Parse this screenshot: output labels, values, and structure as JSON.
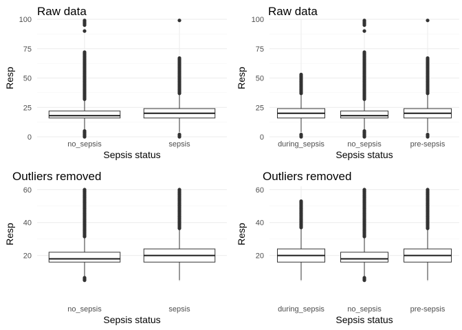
{
  "chart_data": [
    {
      "type": "box",
      "title": "Raw data",
      "xlabel": "Sepsis status",
      "ylabel": "Resp",
      "ylim": [
        0,
        100
      ],
      "yticks": [
        0,
        25,
        50,
        75,
        100
      ],
      "grid": true,
      "categories": [
        "no_sepsis",
        "sepsis"
      ],
      "boxes": [
        {
          "category": "no_sepsis",
          "whisker_low": 6,
          "q1": 16,
          "median": 18,
          "q3": 22,
          "whisker_high": 31,
          "outliers_low": [
            0,
            1,
            2,
            3,
            4,
            5
          ],
          "outliers_high": [
            32,
            34,
            36,
            38,
            40,
            42,
            44,
            46,
            48,
            50,
            52,
            54,
            56,
            58,
            60,
            62,
            64,
            66,
            68,
            72,
            90,
            95,
            99
          ]
        },
        {
          "category": "sepsis",
          "whisker_low": 4,
          "q1": 16,
          "median": 20,
          "q3": 24,
          "whisker_high": 36,
          "outliers_low": [
            0,
            1,
            2
          ],
          "outliers_high": [
            37,
            39,
            41,
            43,
            45,
            47,
            49,
            51,
            53,
            55,
            57,
            59,
            61,
            63,
            65,
            67,
            99
          ]
        }
      ]
    },
    {
      "type": "box",
      "title": "Raw data",
      "xlabel": "Sepsis status",
      "ylabel": "Resp",
      "ylim": [
        0,
        100
      ],
      "yticks": [
        0,
        25,
        50,
        75,
        100
      ],
      "grid": true,
      "categories": [
        "during_sepsis",
        "no_sepsis",
        "pre-sepsis"
      ],
      "boxes": [
        {
          "category": "during_sepsis",
          "whisker_low": 4,
          "q1": 16,
          "median": 20,
          "q3": 24,
          "whisker_high": 36,
          "outliers_low": [
            0,
            1,
            2
          ],
          "outliers_high": [
            37,
            39,
            41,
            43,
            45,
            47,
            49,
            51,
            53
          ]
        },
        {
          "category": "no_sepsis",
          "whisker_low": 6,
          "q1": 16,
          "median": 18,
          "q3": 22,
          "whisker_high": 31,
          "outliers_low": [
            0,
            1,
            2,
            3,
            4,
            5
          ],
          "outliers_high": [
            32,
            34,
            36,
            38,
            40,
            42,
            44,
            46,
            48,
            50,
            52,
            54,
            56,
            58,
            60,
            62,
            64,
            66,
            68,
            72,
            90,
            95,
            99
          ]
        },
        {
          "category": "pre-sepsis",
          "whisker_low": 4,
          "q1": 16,
          "median": 20,
          "q3": 24,
          "whisker_high": 36,
          "outliers_low": [
            0,
            1,
            2
          ],
          "outliers_high": [
            37,
            39,
            41,
            43,
            45,
            47,
            49,
            51,
            53,
            55,
            57,
            59,
            61,
            63,
            65,
            67,
            99
          ]
        }
      ]
    },
    {
      "type": "box",
      "title": "Outliers removed",
      "xlabel": "Sepsis status",
      "ylabel": "Resp",
      "ylim": [
        4,
        62
      ],
      "yticks": [
        20,
        40,
        60
      ],
      "grid": true,
      "categories": [
        "no_sepsis",
        "sepsis"
      ],
      "boxes": [
        {
          "category": "no_sepsis",
          "whisker_low": 7,
          "q1": 16,
          "median": 18,
          "q3": 22,
          "whisker_high": 31,
          "outliers_low": [
            5,
            5.5,
            6,
            6.5
          ],
          "outliers_high": [
            31.5,
            33,
            35,
            37,
            39,
            41,
            43,
            45,
            47,
            49,
            51,
            53,
            55,
            57,
            59,
            60
          ]
        },
        {
          "category": "sepsis",
          "whisker_low": 5,
          "q1": 16,
          "median": 20,
          "q3": 24,
          "whisker_high": 36,
          "outliers_low": [],
          "outliers_high": [
            36.5,
            38,
            40,
            42,
            44,
            46,
            48,
            50,
            52,
            54,
            56,
            58,
            60
          ]
        }
      ]
    },
    {
      "type": "box",
      "title": "Outliers removed",
      "xlabel": "Sepsis status",
      "ylabel": "Resp",
      "ylim": [
        4,
        62
      ],
      "yticks": [
        20,
        40,
        60
      ],
      "grid": true,
      "categories": [
        "during_sepsis",
        "no_sepsis",
        "pre-sepsis"
      ],
      "boxes": [
        {
          "category": "during_sepsis",
          "whisker_low": 5,
          "q1": 16,
          "median": 20,
          "q3": 24,
          "whisker_high": 36,
          "outliers_low": [],
          "outliers_high": [
            37,
            39,
            41,
            43,
            45,
            47,
            49,
            51,
            53
          ]
        },
        {
          "category": "no_sepsis",
          "whisker_low": 7,
          "q1": 16,
          "median": 18,
          "q3": 22,
          "whisker_high": 31,
          "outliers_low": [
            5,
            5.5,
            6,
            6.5
          ],
          "outliers_high": [
            31.5,
            33,
            35,
            37,
            39,
            41,
            43,
            45,
            47,
            49,
            51,
            53,
            55,
            57,
            59,
            60
          ]
        },
        {
          "category": "pre-sepsis",
          "whisker_low": 5,
          "q1": 16,
          "median": 20,
          "q3": 24,
          "whisker_high": 36,
          "outliers_low": [],
          "outliers_high": [
            36.5,
            38,
            40,
            42,
            44,
            46,
            48,
            50,
            52,
            54,
            56,
            58,
            60
          ]
        }
      ]
    }
  ],
  "colors": {
    "box_fill": "#ffffff",
    "box_stroke": "#333333",
    "outlier": "#333333",
    "grid": "#ebebeb"
  }
}
